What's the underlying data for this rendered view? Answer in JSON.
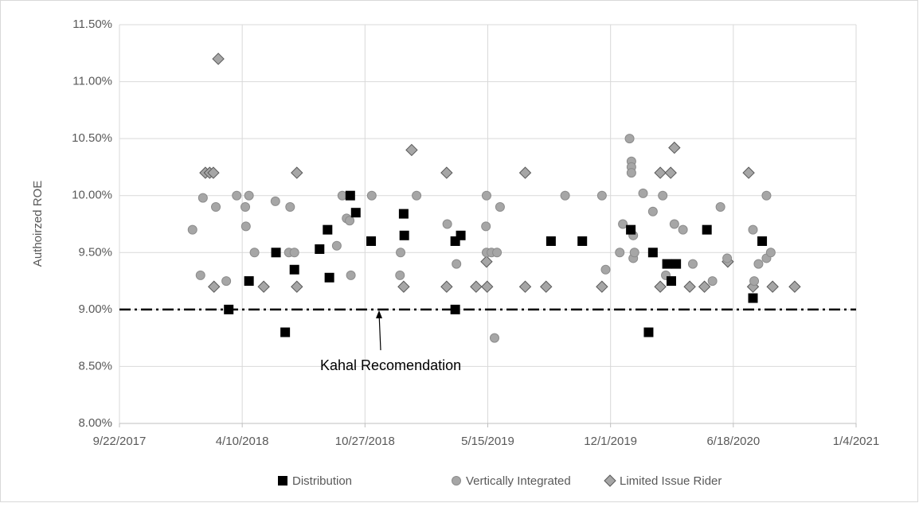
{
  "chart_data": {
    "type": "scatter",
    "ylabel": "Authoirzed ROE",
    "xlim": [
      "2017-09-22",
      "2021-01-04"
    ],
    "xticks": [
      {
        "value": "2017-09-22",
        "label": "9/22/2017"
      },
      {
        "value": "2018-04-10",
        "label": "4/10/2018"
      },
      {
        "value": "2018-10-27",
        "label": "10/27/2018"
      },
      {
        "value": "2019-05-15",
        "label": "5/15/2019"
      },
      {
        "value": "2019-12-01",
        "label": "12/1/2019"
      },
      {
        "value": "2020-06-18",
        "label": "6/18/2020"
      },
      {
        "value": "2021-01-04",
        "label": "1/4/2021"
      }
    ],
    "ylim": [
      8,
      11.5
    ],
    "yticks": [
      {
        "value": 8,
        "label": "8.00%"
      },
      {
        "value": 8.5,
        "label": "8.50%"
      },
      {
        "value": 9,
        "label": "9.00%"
      },
      {
        "value": 9.5,
        "label": "9.50%"
      },
      {
        "value": 10,
        "label": "10.00%"
      },
      {
        "value": 10.5,
        "label": "10.50%"
      },
      {
        "value": 11,
        "label": "11.00%"
      },
      {
        "value": 11.5,
        "label": "11.50%"
      }
    ],
    "grid": true,
    "legend": "bottom",
    "reference_line": {
      "value": 9,
      "label": "Kahal Recomendation"
    },
    "series": [
      {
        "name": "Distribution",
        "color": "#000000",
        "marker": "square",
        "x": [
          "2018-03-19",
          "2018-04-21",
          "2018-06-04",
          "2018-06-19",
          "2018-07-04",
          "2018-08-14",
          "2018-08-27",
          "2018-08-30",
          "2018-10-03",
          "2018-10-12",
          "2018-11-06",
          "2018-12-29",
          "2018-12-30",
          "2019-03-23",
          "2019-03-23",
          "2019-04-01",
          "2019-08-26",
          "2019-10-16",
          "2020-01-03",
          "2020-02-01",
          "2020-02-08",
          "2020-03-02",
          "2020-03-09",
          "2020-03-17",
          "2020-05-06",
          "2020-07-20",
          "2020-08-04"
        ],
        "values": [
          9.0,
          9.25,
          9.5,
          8.8,
          9.35,
          9.53,
          9.7,
          9.28,
          10.0,
          9.85,
          9.6,
          9.84,
          9.65,
          9.0,
          9.6,
          9.65,
          9.6,
          9.6,
          9.7,
          8.8,
          9.5,
          9.4,
          9.25,
          9.4,
          9.7,
          9.1,
          9.6
        ]
      },
      {
        "name": "Vertically Integrated",
        "color": "#a6a6a6",
        "marker": "circle",
        "x": [
          "2018-01-19",
          "2018-02-01",
          "2018-02-05",
          "2018-02-26",
          "2018-03-15",
          "2018-04-01",
          "2018-04-15",
          "2018-04-16",
          "2018-04-21",
          "2018-04-30",
          "2018-06-03",
          "2018-06-27",
          "2018-06-25",
          "2018-07-04",
          "2018-09-11",
          "2018-09-20",
          "2018-09-27",
          "2018-10-02",
          "2018-10-04",
          "2018-11-07",
          "2018-12-23",
          "2018-12-24",
          "2019-01-19",
          "2019-03-10",
          "2019-03-25",
          "2019-05-12",
          "2019-05-13",
          "2019-05-13",
          "2019-05-21",
          "2019-05-26",
          "2019-05-30",
          "2019-06-04",
          "2019-09-18",
          "2019-11-17",
          "2019-11-23",
          "2019-12-16",
          "2019-12-21",
          "2020-01-01",
          "2020-01-04",
          "2020-01-04",
          "2020-01-04",
          "2020-01-07",
          "2020-01-07",
          "2020-01-09",
          "2020-01-23",
          "2020-02-08",
          "2020-02-24",
          "2020-02-29",
          "2020-03-14",
          "2020-03-28",
          "2020-04-13",
          "2020-05-15",
          "2020-05-28",
          "2020-06-08",
          "2020-07-20",
          "2020-07-22",
          "2020-07-29",
          "2020-08-11",
          "2020-08-11",
          "2020-08-18"
        ],
        "values": [
          9.7,
          9.3,
          9.98,
          9.9,
          9.25,
          10.0,
          9.9,
          9.73,
          10.0,
          9.5,
          9.95,
          9.9,
          9.5,
          9.5,
          9.56,
          10.0,
          9.8,
          9.78,
          9.3,
          10.0,
          9.3,
          9.5,
          10.0,
          9.75,
          9.4,
          9.73,
          10.0,
          9.5,
          9.5,
          8.75,
          9.5,
          9.9,
          10.0,
          10.0,
          9.35,
          9.5,
          9.75,
          10.5,
          10.3,
          10.25,
          10.2,
          9.65,
          9.45,
          9.5,
          10.02,
          9.86,
          10.0,
          9.3,
          9.75,
          9.7,
          9.4,
          9.25,
          9.9,
          9.45,
          9.7,
          9.25,
          9.4,
          10.0,
          9.45,
          9.5
        ]
      },
      {
        "name": "Limited Issue Rider",
        "color": "#a6a6a6",
        "marker": "diamond",
        "x": [
          "2018-02-09",
          "2018-02-16",
          "2018-02-22",
          "2018-02-23",
          "2018-03-02",
          "2018-05-15",
          "2018-07-08",
          "2018-07-08",
          "2018-12-29",
          "2019-01-11",
          "2019-03-09",
          "2019-03-09",
          "2019-04-26",
          "2019-05-13",
          "2019-05-14",
          "2019-07-15",
          "2019-07-15",
          "2019-08-18",
          "2019-11-17",
          "2020-02-20",
          "2020-02-20",
          "2020-03-08",
          "2020-03-14",
          "2020-04-08",
          "2020-05-02",
          "2020-06-09",
          "2020-07-13",
          "2020-07-20",
          "2020-08-21",
          "2020-09-26"
        ],
        "values": [
          10.2,
          10.2,
          10.2,
          9.2,
          11.2,
          9.2,
          10.2,
          9.2,
          9.2,
          10.4,
          10.2,
          9.2,
          9.2,
          9.42,
          9.2,
          10.2,
          9.2,
          9.2,
          9.2,
          10.2,
          9.2,
          10.2,
          10.42,
          9.2,
          9.2,
          9.42,
          10.2,
          9.2,
          9.2,
          9.2
        ]
      }
    ]
  }
}
